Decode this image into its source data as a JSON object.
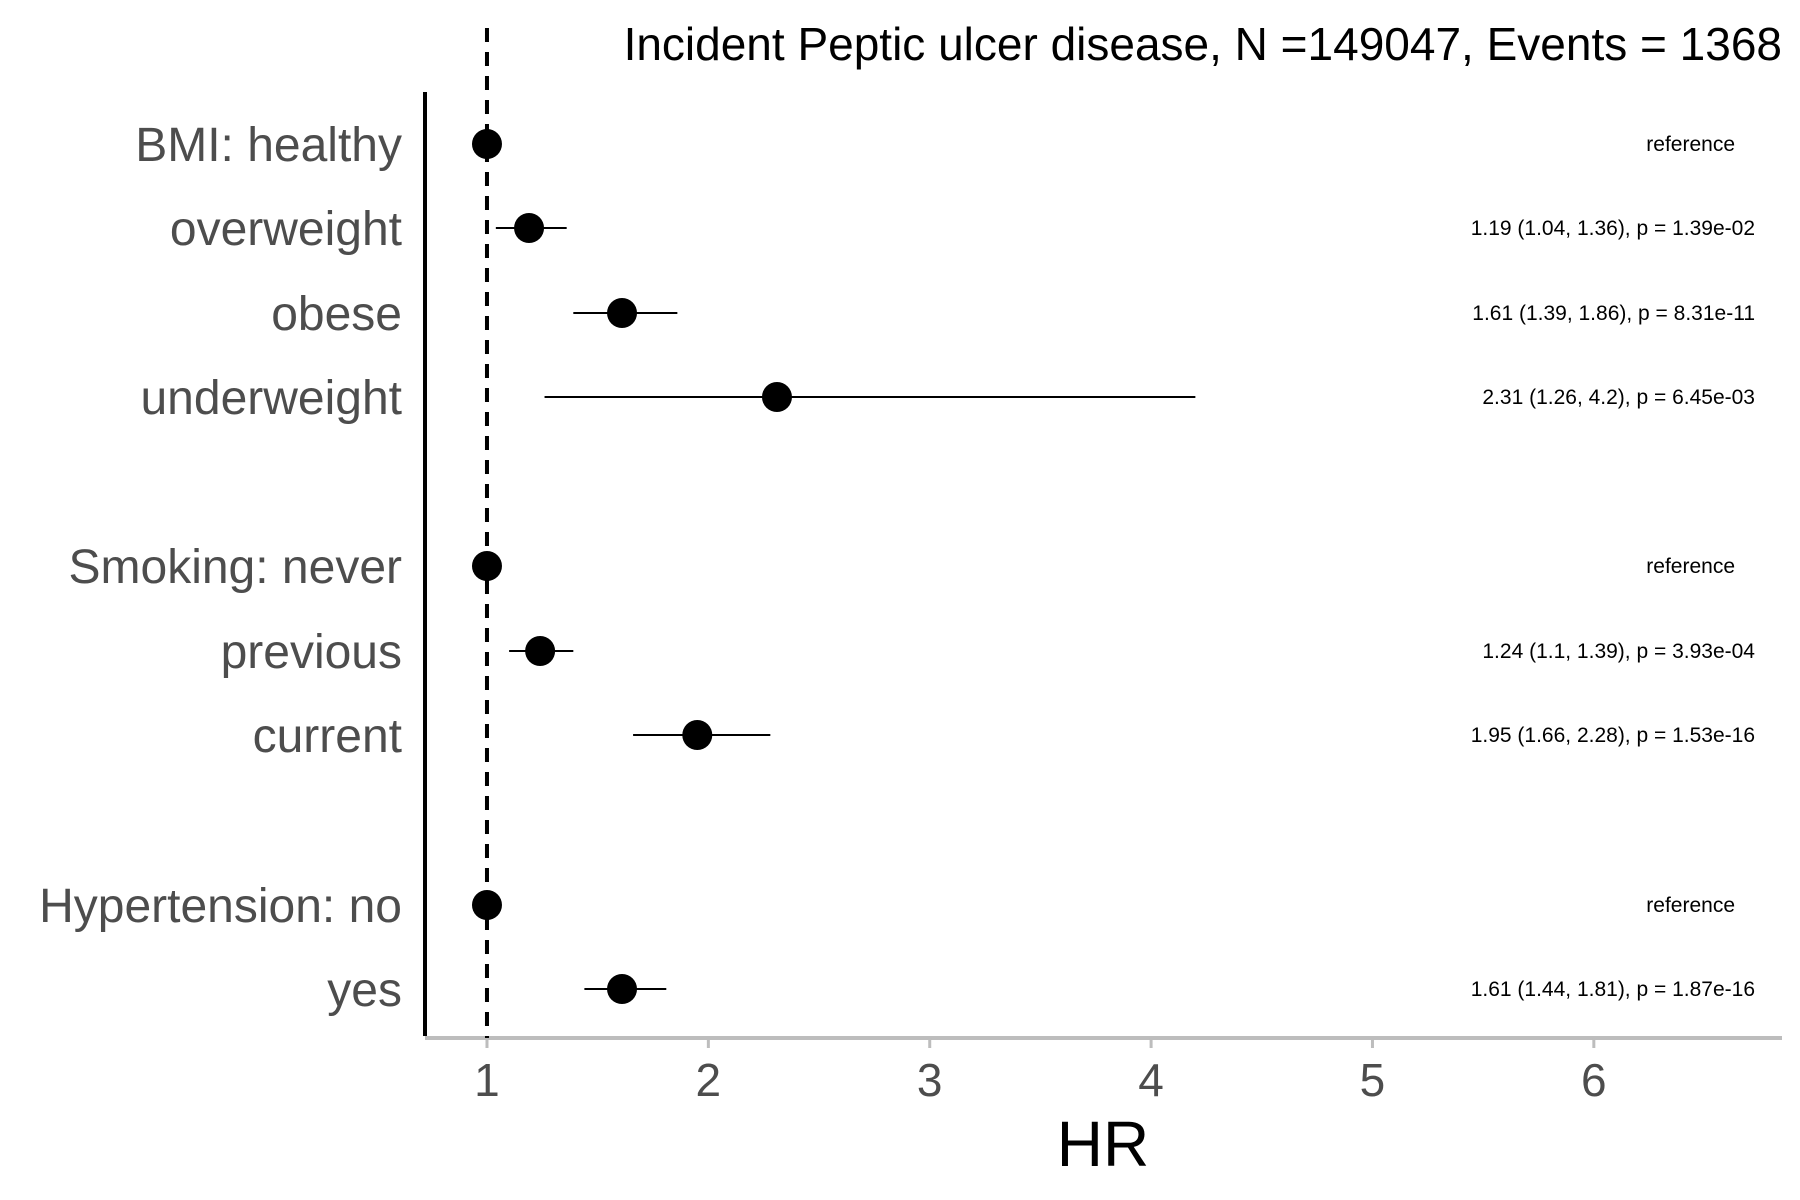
{
  "chart_data": {
    "type": "forest",
    "title": "Incident Peptic ulcer disease, N =149047, Events = 1368",
    "xlabel": "HR",
    "xlim": [
      0.72,
      6.85
    ],
    "x_ticks": [
      1,
      2,
      3,
      4,
      5,
      6
    ],
    "reference_line": 1,
    "grid": false,
    "rows": [
      {
        "label": "BMI: healthy",
        "hr": 1,
        "lower": null,
        "upper": null,
        "stat_text": "reference"
      },
      {
        "label": "overweight",
        "hr": 1.19,
        "lower": 1.04,
        "upper": 1.36,
        "stat_text": "1.19 (1.04, 1.36), p = 1.39e-02"
      },
      {
        "label": "obese",
        "hr": 1.61,
        "lower": 1.39,
        "upper": 1.86,
        "stat_text": "1.61 (1.39, 1.86), p = 8.31e-11"
      },
      {
        "label": "underweight",
        "hr": 2.31,
        "lower": 1.26,
        "upper": 4.2,
        "stat_text": "2.31 (1.26, 4.2), p = 6.45e-03"
      },
      {
        "label": "Smoking: never",
        "hr": 1,
        "lower": null,
        "upper": null,
        "stat_text": "reference"
      },
      {
        "label": "previous",
        "hr": 1.24,
        "lower": 1.1,
        "upper": 1.39,
        "stat_text": "1.24 (1.1, 1.39), p = 3.93e-04"
      },
      {
        "label": "current",
        "hr": 1.95,
        "lower": 1.66,
        "upper": 2.28,
        "stat_text": "1.95 (1.66, 2.28), p = 1.53e-16"
      },
      {
        "label": "Hypertension: no",
        "hr": 1,
        "lower": null,
        "upper": null,
        "stat_text": "reference"
      },
      {
        "label": "yes",
        "hr": 1.61,
        "lower": 1.44,
        "upper": 1.81,
        "stat_text": "1.61 (1.44, 1.81), p = 1.87e-16"
      }
    ]
  },
  "colors": {
    "point": "#000000",
    "ci_line": "#000000",
    "reference_line": "#000000",
    "left_axis": "#000000",
    "bottom_axis": "#bdbdbd",
    "label_text": "#4d4d4d"
  }
}
